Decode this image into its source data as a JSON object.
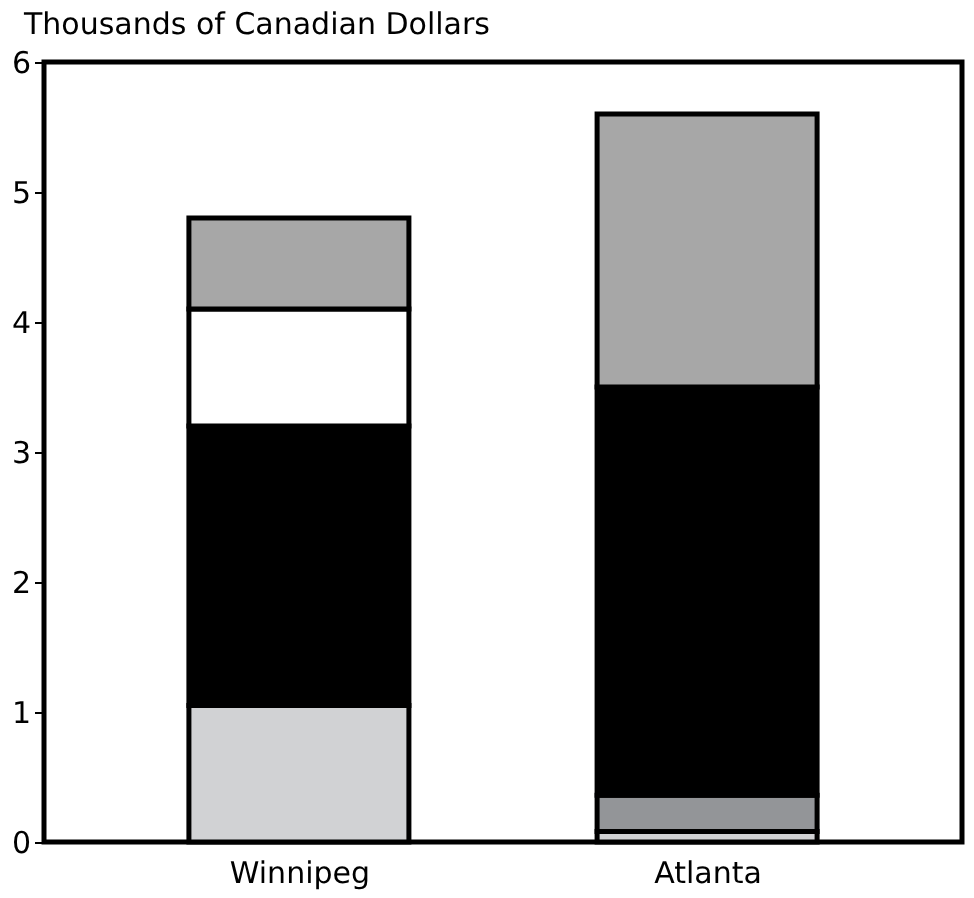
{
  "chart_data": {
    "type": "bar",
    "stacked": true,
    "ylabel": "Thousands of Canadian Dollars",
    "categories": [
      "Winnipeg",
      "Atlanta"
    ],
    "ylim": [
      0,
      6
    ],
    "yticks": [
      0,
      1,
      2,
      3,
      4,
      5,
      6
    ],
    "grid": false,
    "legend": false,
    "series": [
      {
        "color": "#d1d2d4",
        "values": [
          1.05,
          0.08
        ]
      },
      {
        "color": "#939598",
        "values": [
          0,
          0.28
        ]
      },
      {
        "color": "#000000",
        "values": [
          2.15,
          3.14
        ]
      },
      {
        "color": "#ffffff",
        "values": [
          0.9,
          0
        ]
      },
      {
        "color": "#a7a7a7",
        "values": [
          0.7,
          2.1
        ]
      }
    ]
  }
}
